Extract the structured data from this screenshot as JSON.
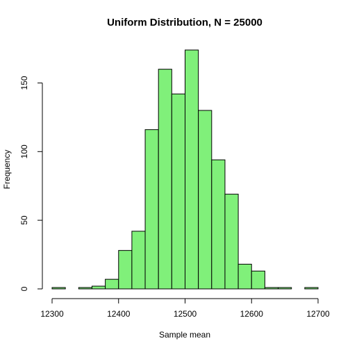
{
  "chart_data": {
    "type": "bar",
    "title": "Uniform Distribution, N =  25000",
    "xlabel": "Sample mean",
    "ylabel": "Frequency",
    "bar_color": "#80F07A",
    "bin_edges": [
      12300,
      12320,
      12340,
      12360,
      12380,
      12400,
      12420,
      12440,
      12460,
      12480,
      12500,
      12520,
      12540,
      12560,
      12580,
      12600,
      12620,
      12640,
      12660,
      12680,
      12700
    ],
    "values": [
      1,
      0,
      1,
      2,
      7,
      28,
      42,
      116,
      160,
      142,
      174,
      130,
      94,
      69,
      18,
      13,
      1,
      1,
      0,
      1
    ],
    "xlim": [
      12300,
      12700
    ],
    "ylim": [
      0,
      174
    ],
    "x_ticks": [
      "12300",
      "12400",
      "12500",
      "12600",
      "12700"
    ],
    "y_ticks": [
      "0",
      "50",
      "100",
      "150"
    ]
  }
}
